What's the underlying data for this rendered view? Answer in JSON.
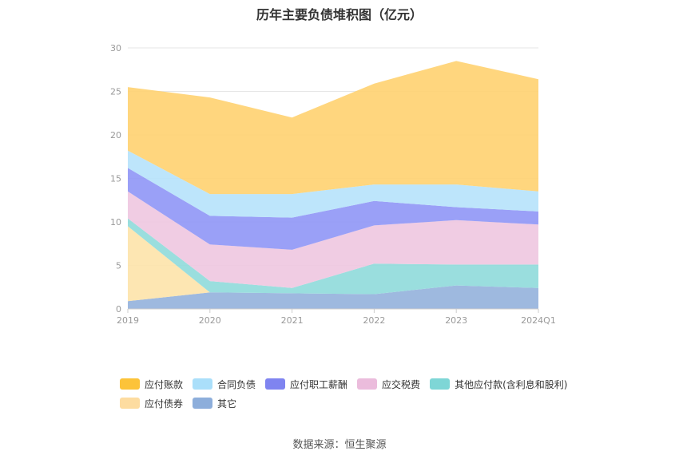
{
  "chart_data": {
    "type": "area",
    "stacked": true,
    "title": "历年主要负债堆积图（亿元）",
    "categories": [
      "2019",
      "2020",
      "2021",
      "2022",
      "2023",
      "2024Q1"
    ],
    "ylim": [
      0,
      30
    ],
    "yticks": [
      "0",
      "5",
      "10",
      "15",
      "20",
      "25",
      "30"
    ],
    "grid": true,
    "legend_position": "bottom",
    "series": [
      {
        "name": "其它",
        "color": "#93b1dc",
        "values": [
          0.9,
          1.9,
          1.8,
          1.7,
          2.7,
          2.4
        ]
      },
      {
        "name": "应付债券",
        "color": "#fde3aa",
        "values": [
          8.6,
          0.0,
          0.0,
          0.0,
          0.0,
          0.0
        ]
      },
      {
        "name": "其他应付款(含利息和股利)",
        "color": "#8fdada",
        "values": [
          0.9,
          1.3,
          0.6,
          3.5,
          2.4,
          2.7
        ]
      },
      {
        "name": "应交税费",
        "color": "#eec6e0",
        "values": [
          3.1,
          4.2,
          4.4,
          4.4,
          5.1,
          4.6
        ]
      },
      {
        "name": "应付职工薪酬",
        "color": "#8f96f6",
        "values": [
          2.7,
          3.3,
          3.7,
          2.8,
          1.5,
          1.5
        ]
      },
      {
        "name": "合同负债",
        "color": "#b6e2fb",
        "values": [
          2.0,
          2.5,
          2.7,
          1.9,
          2.6,
          2.3
        ]
      },
      {
        "name": "应付账款",
        "color": "#ffd170",
        "values": [
          7.3,
          11.1,
          8.8,
          11.6,
          14.2,
          12.9
        ]
      }
    ]
  },
  "legend": [
    {
      "name": "应付账款",
      "color": "#fcc339"
    },
    {
      "name": "合同负债",
      "color": "#aadffa"
    },
    {
      "name": "应付职工薪酬",
      "color": "#7f84f0"
    },
    {
      "name": "应交税费",
      "color": "#ebbcdc"
    },
    {
      "name": "其他应付款(含利息和股利)",
      "color": "#7ed6d6"
    },
    {
      "name": "应付债券",
      "color": "#fddca0"
    },
    {
      "name": "其它",
      "color": "#8daedb"
    }
  ],
  "source": "数据来源：恒生聚源"
}
